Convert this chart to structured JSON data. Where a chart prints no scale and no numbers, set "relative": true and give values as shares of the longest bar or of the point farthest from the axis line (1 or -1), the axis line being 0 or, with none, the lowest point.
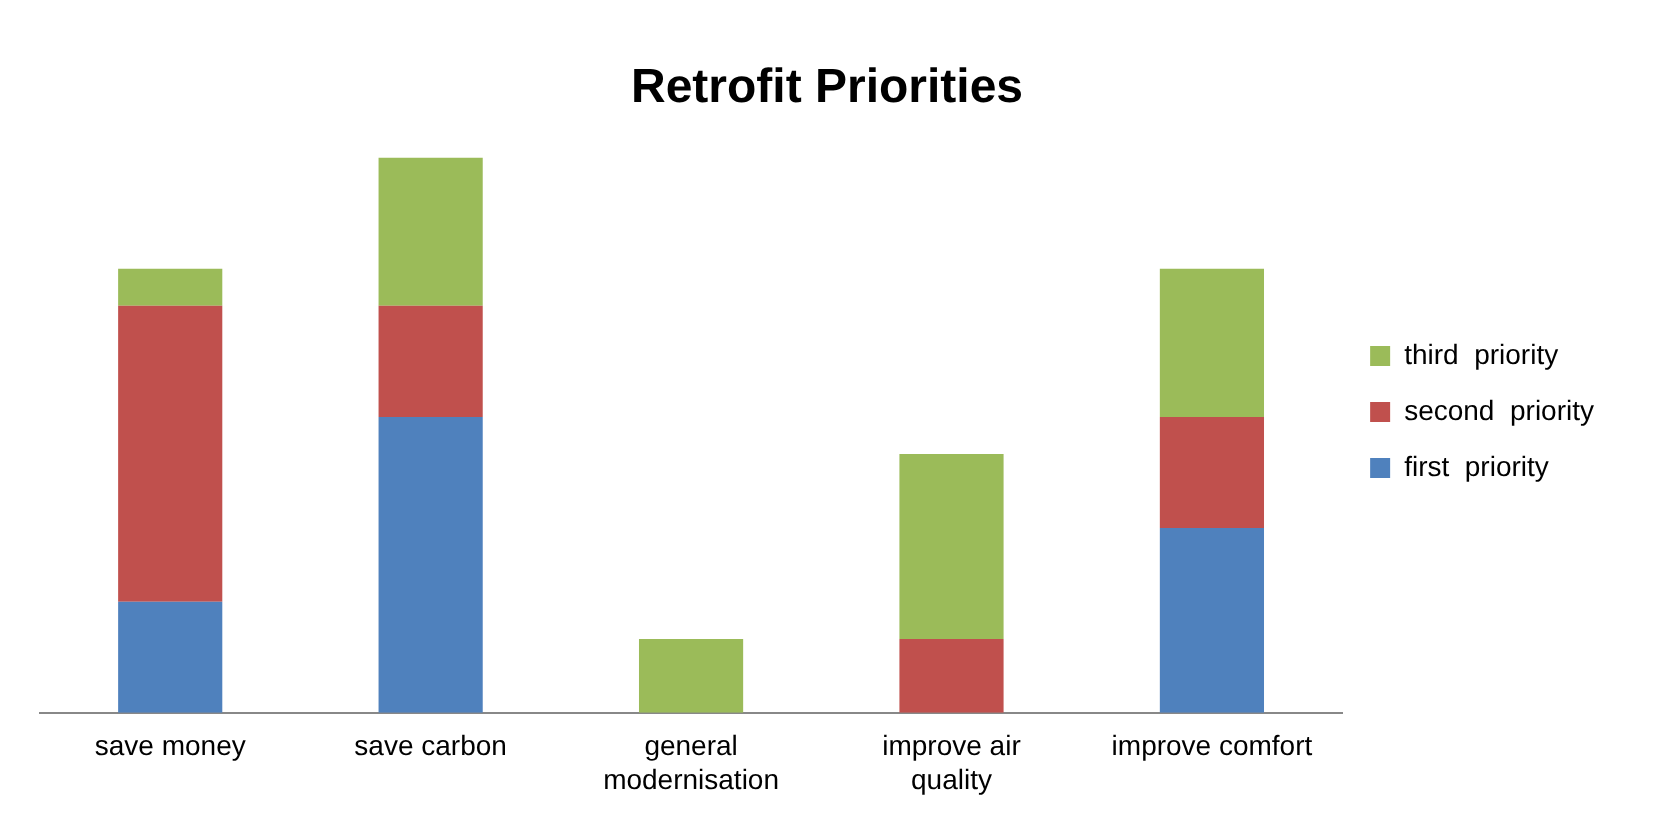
{
  "chart_data": {
    "type": "bar",
    "title": "Retrofit Priorities",
    "relative": true,
    "stacked": true,
    "legend": "right",
    "grid": false,
    "categories": [
      "save money",
      "save carbon",
      "general modernisation",
      "improve air quality",
      "improve comfort"
    ],
    "series": [
      {
        "name": "first  priority",
        "color": "#4f81bd",
        "values": [
          0.2,
          0.533,
          0,
          0,
          0.333
        ]
      },
      {
        "name": "second  priority",
        "color": "#c0504d",
        "values": [
          0.533,
          0.2,
          0,
          0.133,
          0.2
        ]
      },
      {
        "name": "third  priority",
        "color": "#9bbb59",
        "values": [
          0.067,
          0.267,
          0.133,
          0.333,
          0.267
        ]
      }
    ]
  }
}
